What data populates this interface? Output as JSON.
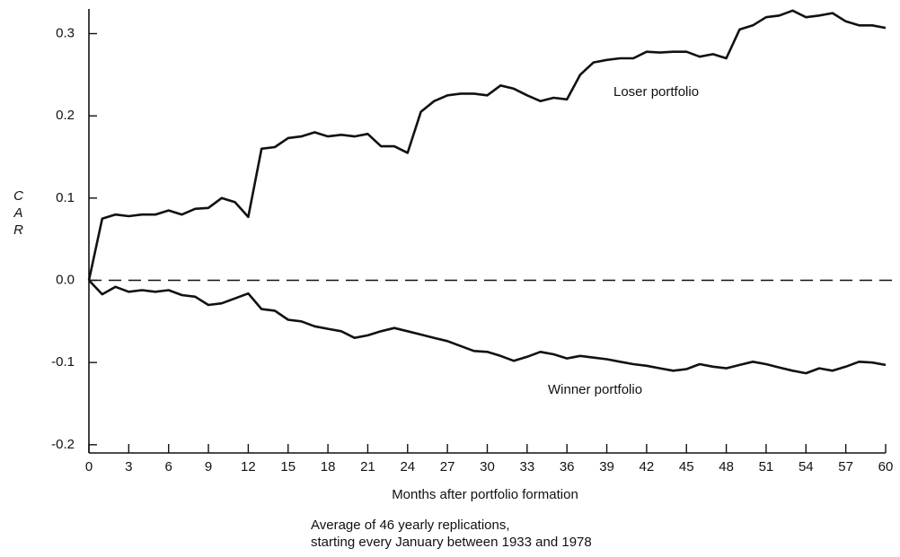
{
  "chart_data": {
    "type": "line",
    "xlabel": "Months after portfolio formation",
    "ylabel": "CAR",
    "caption": [
      "Average of 46 yearly replications,",
      "starting every January between 1933 and 1978"
    ],
    "x": [
      0,
      1,
      2,
      3,
      4,
      5,
      6,
      7,
      8,
      9,
      10,
      11,
      12,
      13,
      14,
      15,
      16,
      17,
      18,
      19,
      20,
      21,
      22,
      23,
      24,
      25,
      26,
      27,
      28,
      29,
      30,
      31,
      32,
      33,
      34,
      35,
      36,
      37,
      38,
      39,
      40,
      41,
      42,
      43,
      44,
      45,
      46,
      47,
      48,
      49,
      50,
      51,
      52,
      53,
      54,
      55,
      56,
      57,
      58,
      59,
      60
    ],
    "series": [
      {
        "name": "Loser portfolio",
        "color": "#111111",
        "values": [
          0,
          0.075,
          0.08,
          0.078,
          0.08,
          0.08,
          0.085,
          0.08,
          0.087,
          0.088,
          0.1,
          0.095,
          0.077,
          0.16,
          0.162,
          0.173,
          0.175,
          0.18,
          0.175,
          0.177,
          0.175,
          0.178,
          0.163,
          0.163,
          0.155,
          0.205,
          0.218,
          0.225,
          0.227,
          0.227,
          0.225,
          0.237,
          0.233,
          0.225,
          0.218,
          0.222,
          0.22,
          0.25,
          0.265,
          0.268,
          0.27,
          0.27,
          0.278,
          0.277,
          0.278,
          0.278,
          0.272,
          0.275,
          0.27,
          0.305,
          0.31,
          0.32,
          0.322,
          0.328,
          0.32,
          0.322,
          0.325,
          0.315,
          0.31,
          0.31,
          0.307
        ]
      },
      {
        "name": "Winner portfolio",
        "color": "#111111",
        "values": [
          0,
          -0.017,
          -0.008,
          -0.014,
          -0.012,
          -0.014,
          -0.012,
          -0.018,
          -0.02,
          -0.03,
          -0.028,
          -0.022,
          -0.016,
          -0.035,
          -0.037,
          -0.048,
          -0.05,
          -0.056,
          -0.059,
          -0.062,
          -0.07,
          -0.067,
          -0.062,
          -0.058,
          -0.062,
          -0.066,
          -0.07,
          -0.074,
          -0.08,
          -0.086,
          -0.087,
          -0.092,
          -0.098,
          -0.093,
          -0.087,
          -0.09,
          -0.095,
          -0.092,
          -0.094,
          -0.096,
          -0.099,
          -0.102,
          -0.104,
          -0.107,
          -0.11,
          -0.108,
          -0.102,
          -0.105,
          -0.107,
          -0.103,
          -0.099,
          -0.102,
          -0.106,
          -0.11,
          -0.113,
          -0.107,
          -0.11,
          -0.105,
          -0.099,
          -0.1,
          -0.103
        ]
      }
    ],
    "xlim": [
      0,
      60
    ],
    "xticks": [
      0,
      3,
      6,
      9,
      12,
      15,
      18,
      21,
      24,
      27,
      30,
      33,
      36,
      39,
      42,
      45,
      48,
      51,
      54,
      57,
      60
    ],
    "ylim": [
      -0.21,
      0.33
    ],
    "yticks": [
      0.3,
      0.2,
      0.1,
      {
        "value": 0,
        "label": "0.0"
      },
      -0.1,
      -0.2
    ],
    "zero_line": "dashed"
  }
}
